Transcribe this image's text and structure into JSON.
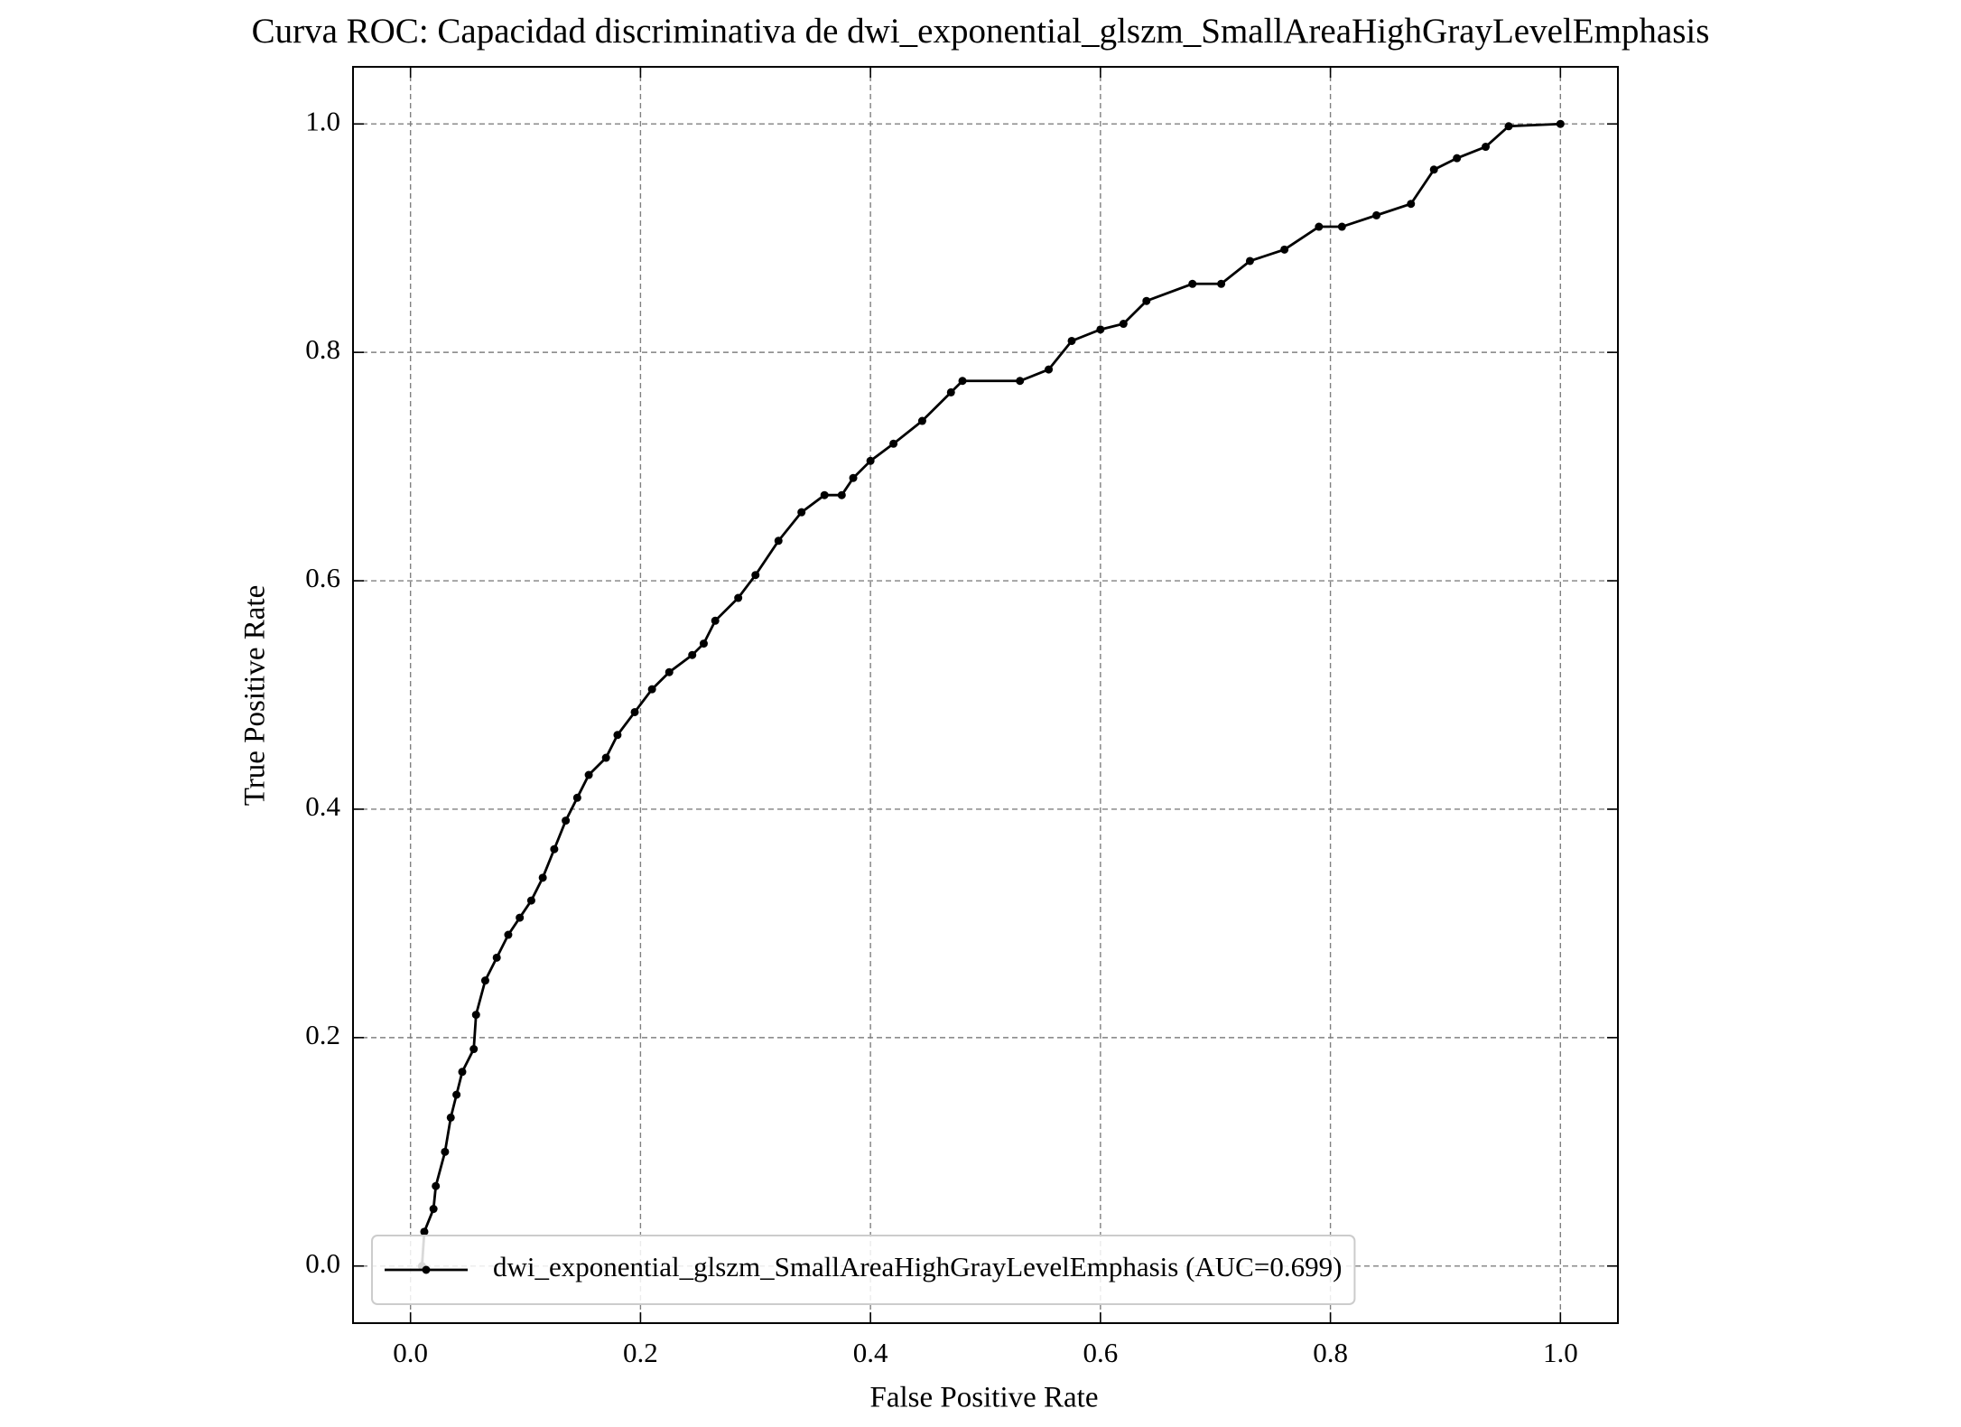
{
  "chart_data": {
    "type": "line",
    "title": "Curva ROC: Capacidad discriminativa de dwi_exponential_glszm_SmallAreaHighGrayLevelEmphasis",
    "x_label": "False Positive Rate",
    "y_label": "True Positive Rate",
    "x": [
      0.01,
      0.012,
      0.02,
      0.022,
      0.03,
      0.035,
      0.04,
      0.045,
      0.055,
      0.057,
      0.065,
      0.075,
      0.085,
      0.095,
      0.105,
      0.115,
      0.125,
      0.135,
      0.145,
      0.155,
      0.17,
      0.18,
      0.195,
      0.21,
      0.225,
      0.245,
      0.255,
      0.265,
      0.285,
      0.3,
      0.32,
      0.34,
      0.36,
      0.375,
      0.385,
      0.4,
      0.42,
      0.445,
      0.47,
      0.48,
      0.53,
      0.555,
      0.575,
      0.6,
      0.62,
      0.64,
      0.68,
      0.705,
      0.73,
      0.76,
      0.79,
      0.81,
      0.84,
      0.87,
      0.89,
      0.91,
      0.935,
      0.955,
      1.0
    ],
    "series": [
      {
        "name": "dwi_exponential_glszm_SmallAreaHighGrayLevelEmphasis (AUC=0.699)",
        "color": "#000000",
        "values": [
          0.0,
          0.03,
          0.05,
          0.07,
          0.1,
          0.13,
          0.15,
          0.17,
          0.19,
          0.22,
          0.25,
          0.27,
          0.29,
          0.305,
          0.32,
          0.34,
          0.365,
          0.39,
          0.41,
          0.43,
          0.445,
          0.465,
          0.485,
          0.505,
          0.52,
          0.535,
          0.545,
          0.565,
          0.585,
          0.605,
          0.635,
          0.66,
          0.675,
          0.675,
          0.69,
          0.705,
          0.72,
          0.74,
          0.765,
          0.775,
          0.775,
          0.785,
          0.81,
          0.82,
          0.825,
          0.845,
          0.86,
          0.86,
          0.88,
          0.89,
          0.91,
          0.91,
          0.92,
          0.93,
          0.96,
          0.97,
          0.98,
          0.998,
          1.0
        ]
      }
    ],
    "xlim": [
      -0.05,
      1.05
    ],
    "ylim": [
      -0.05,
      1.05
    ],
    "xticks": [
      {
        "value": 0,
        "label": "0.0"
      },
      0.2,
      0.4,
      0.6,
      0.8,
      {
        "value": 1,
        "label": "1.0"
      }
    ],
    "yticks": [
      {
        "value": 0,
        "label": "0.0"
      },
      0.2,
      0.4,
      0.6,
      0.8,
      {
        "value": 1,
        "label": "1.0"
      }
    ],
    "grid": true,
    "legend": "lower left"
  }
}
